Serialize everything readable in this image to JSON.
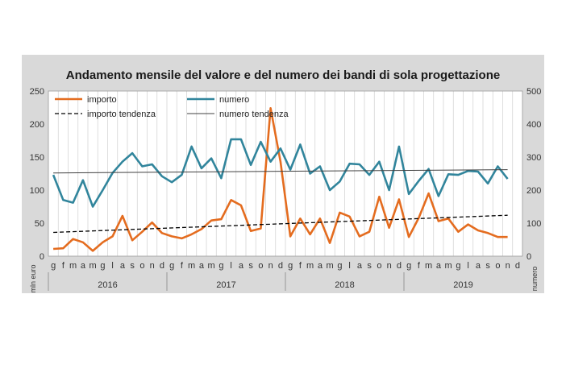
{
  "chart_data": {
    "type": "line",
    "title": "Andamento mensile del valore e del numero dei bandi di sola progettazione",
    "ylabel_left": "mln euro",
    "ylabel_right": "numero",
    "ylim_left": [
      0,
      250
    ],
    "ylim_right": [
      0,
      500
    ],
    "yticks_left": [
      "0",
      "50",
      "100",
      "150",
      "200",
      "250"
    ],
    "yticks_right": [
      "0",
      "100",
      "200",
      "300",
      "400",
      "500"
    ],
    "grid": "vertical",
    "legend_position": "top-left",
    "month_labels": [
      "g",
      "f",
      "m",
      "a",
      "m",
      "g",
      "l",
      "a",
      "s",
      "o",
      "n",
      "d"
    ],
    "years": [
      "2016",
      "2017",
      "2018",
      "2019"
    ],
    "colors": {
      "importo": "#e46c1f",
      "numero": "#31859c",
      "importo_tendenza": "#000000",
      "numero_tendenza": "#404040"
    },
    "series": [
      {
        "name": "importo",
        "axis": "left",
        "values": [
          11,
          12,
          26,
          21,
          8,
          21,
          30,
          61,
          24,
          37,
          51,
          35,
          30,
          27,
          33,
          41,
          54,
          56,
          85,
          77,
          38,
          42,
          224,
          143,
          30,
          57,
          33,
          57,
          20,
          66,
          60,
          30,
          37,
          90,
          43,
          86,
          29,
          58,
          95,
          53,
          57,
          37,
          48,
          39,
          35,
          29,
          29
        ]
      },
      {
        "name": "numero",
        "axis": "left",
        "values": [
          123,
          85,
          81,
          115,
          75,
          100,
          126,
          143,
          156,
          136,
          139,
          121,
          112,
          123,
          166,
          133,
          148,
          118,
          177,
          177,
          138,
          173,
          143,
          163,
          131,
          169,
          125,
          136,
          100,
          113,
          140,
          139,
          123,
          143,
          100,
          166,
          94,
          114,
          132,
          91,
          124,
          123,
          129,
          128,
          110,
          136,
          117
        ]
      },
      {
        "name": "importo tendenza",
        "axis": "left",
        "values": [
          36,
          62
        ]
      },
      {
        "name": "numero tendenza",
        "axis": "left",
        "values": [
          126,
          131
        ]
      }
    ]
  }
}
